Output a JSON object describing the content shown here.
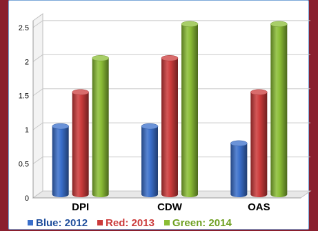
{
  "chart_data": {
    "type": "bar",
    "categories": [
      "DPI",
      "CDW",
      "OAS"
    ],
    "series": [
      {
        "name": "Blue: 2012",
        "color": "#3a6fcb",
        "values": [
          1,
          1,
          0.75
        ]
      },
      {
        "name": "Red: 2013",
        "color": "#cc3b3b",
        "values": [
          1.5,
          2,
          1.5
        ]
      },
      {
        "name": "Green: 2014",
        "color": "#8bbd35",
        "values": [
          2,
          2.5,
          2.5
        ]
      }
    ],
    "y_ticks": [
      "0",
      "0.5",
      "1",
      "1.5",
      "2",
      "2.5"
    ],
    "ylim": [
      0,
      2.6
    ],
    "grid": true,
    "legend_position": "bottom",
    "title": "",
    "xlabel": "",
    "ylabel": "",
    "style": "3d-cylinder"
  }
}
